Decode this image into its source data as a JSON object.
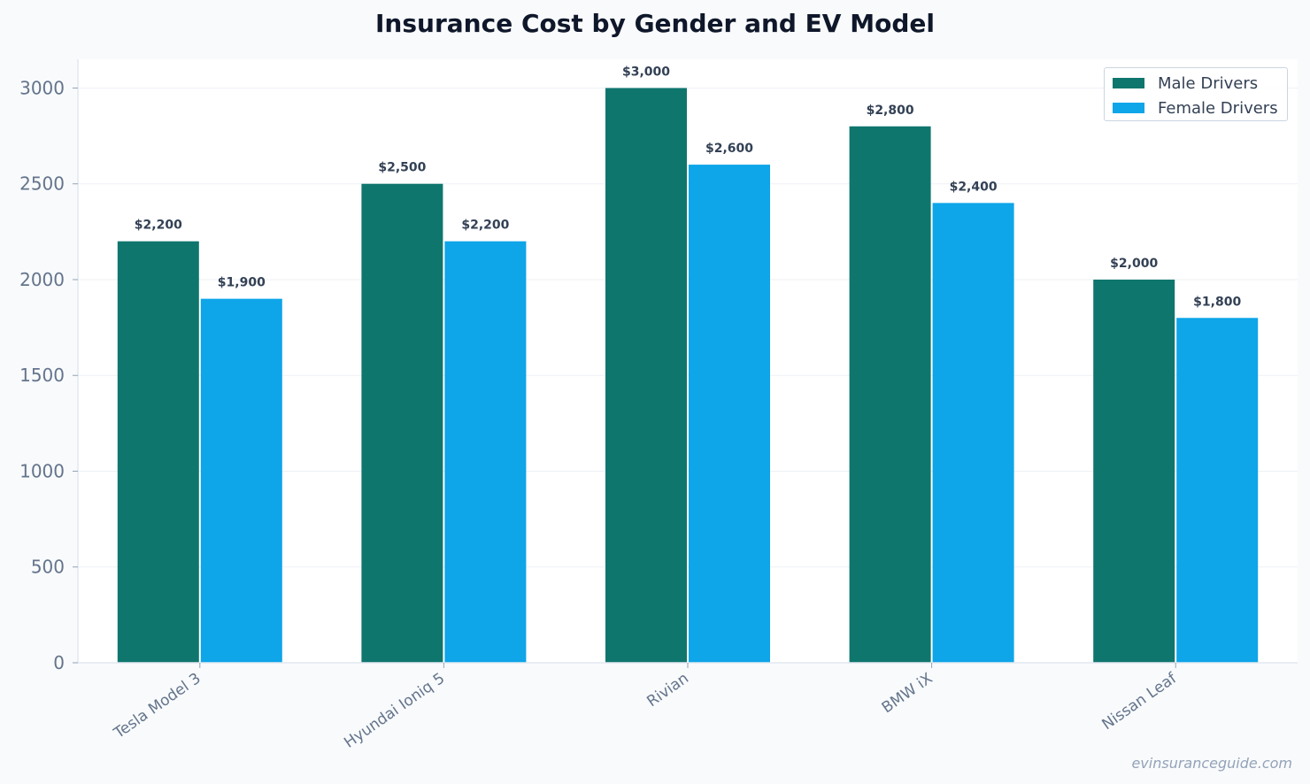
{
  "chart_data": {
    "type": "bar",
    "title": "Insurance Cost by Gender and EV Model",
    "categories": [
      "Tesla Model 3",
      "Hyundai Ioniq 5",
      "Rivian",
      "BMW iX",
      "Nissan Leaf"
    ],
    "series": [
      {
        "name": "Male Drivers",
        "color": "#0f766e",
        "values": [
          2200,
          2500,
          3000,
          2800,
          2000
        ],
        "labels": [
          "$2,200",
          "$2,500",
          "$3,000",
          "$2,800",
          "$2,000"
        ]
      },
      {
        "name": "Female Drivers",
        "color": "#0ea5e9",
        "values": [
          1900,
          2200,
          2600,
          2400,
          1800
        ],
        "labels": [
          "$1,900",
          "$2,200",
          "$2,600",
          "$2,400",
          "$1,800"
        ]
      }
    ],
    "y_ticks": [
      "0",
      "500",
      "1000",
      "1500",
      "2000",
      "2500",
      "3000"
    ],
    "ylim": [
      0,
      3150
    ],
    "xlabel": "",
    "ylabel": "",
    "grid": true,
    "legend_position": "top-right"
  },
  "watermark": "evinsuranceguide.com"
}
